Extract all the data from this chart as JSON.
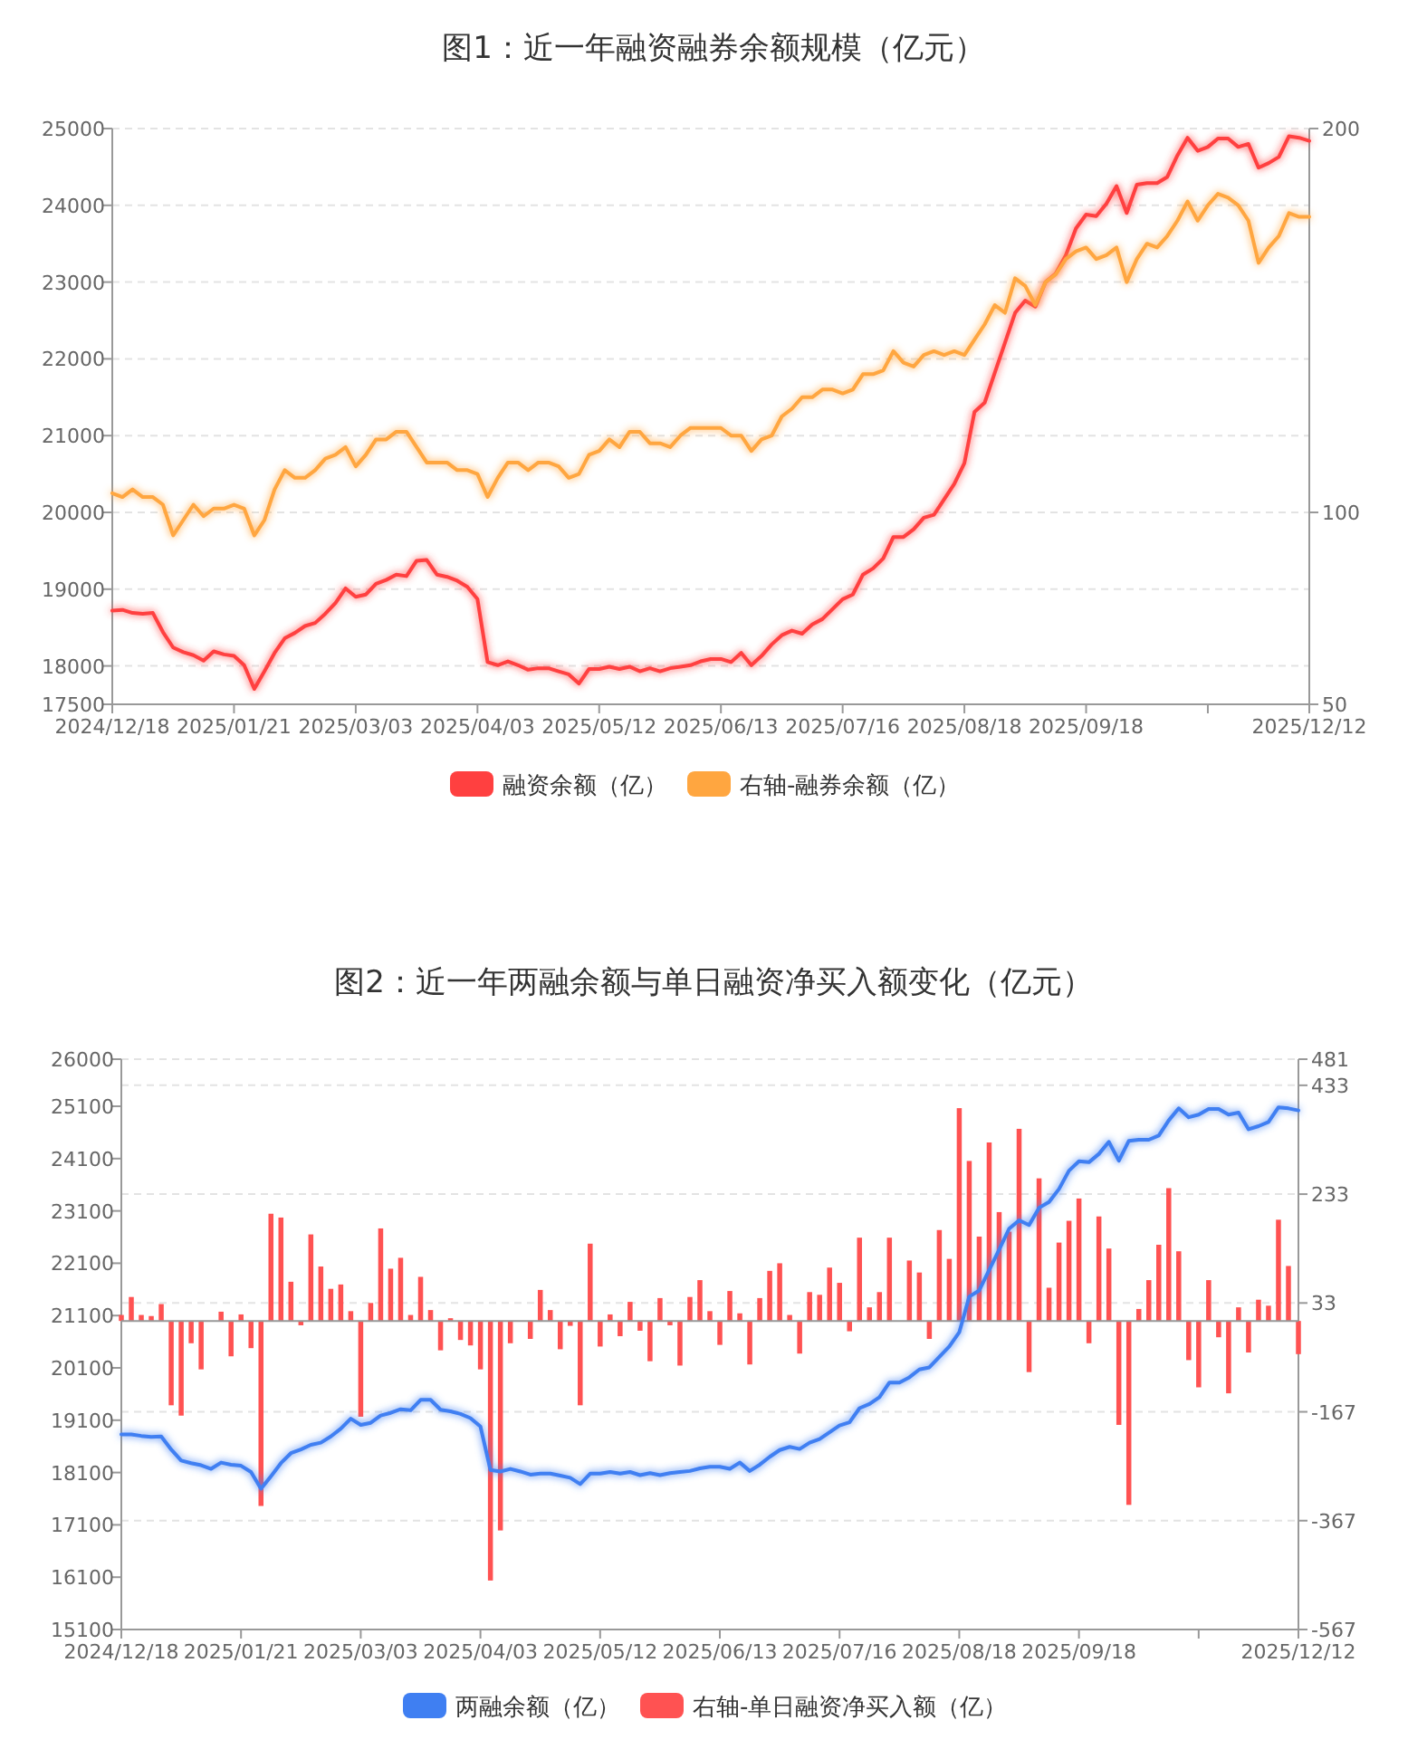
{
  "chart_data": [
    {
      "type": "line",
      "title": "图1：近一年融资融券余额规模（亿元）",
      "categories": [
        "2024/12/18",
        null,
        null,
        null,
        null,
        null,
        null,
        null,
        null,
        null,
        null,
        null,
        "2025/01/21",
        null,
        null,
        null,
        null,
        null,
        null,
        null,
        null,
        null,
        null,
        null,
        "2025/03/03",
        null,
        null,
        null,
        null,
        null,
        null,
        null,
        null,
        null,
        null,
        null,
        "2025/04/03",
        null,
        null,
        null,
        null,
        null,
        null,
        null,
        null,
        null,
        null,
        null,
        "2025/05/12",
        null,
        null,
        null,
        null,
        null,
        null,
        null,
        null,
        null,
        null,
        null,
        "2025/06/13",
        null,
        null,
        null,
        null,
        null,
        null,
        null,
        null,
        null,
        null,
        null,
        "2025/07/16",
        null,
        null,
        null,
        null,
        null,
        null,
        null,
        null,
        null,
        null,
        null,
        "2025/08/18",
        null,
        null,
        null,
        null,
        null,
        null,
        null,
        null,
        null,
        null,
        null,
        "2025/09/18",
        null,
        null,
        null,
        null,
        null,
        null,
        null,
        null,
        null,
        null,
        null,
        null,
        null,
        null,
        null,
        null,
        null,
        null,
        null,
        null,
        null,
        "2025/12/12"
      ],
      "series": [
        {
          "name": "融资余额（亿）",
          "color": "#ff4040",
          "values": [
            18720,
            18730,
            18690,
            18680,
            18690,
            18440,
            18240,
            18180,
            18140,
            18070,
            18190,
            18150,
            18130,
            18010,
            17700,
            17930,
            18170,
            18360,
            18430,
            18520,
            18560,
            18680,
            18820,
            19010,
            18900,
            18930,
            19070,
            19120,
            19190,
            19170,
            19370,
            19380,
            19190,
            19160,
            19110,
            19030,
            18870,
            18050,
            18010,
            18060,
            18010,
            17950,
            17970,
            17970,
            17930,
            17890,
            17770,
            17960,
            17960,
            17990,
            17960,
            17990,
            17930,
            17970,
            17930,
            17970,
            17990,
            18010,
            18060,
            18090,
            18090,
            18050,
            18170,
            18010,
            18130,
            18280,
            18400,
            18460,
            18420,
            18540,
            18610,
            18740,
            18870,
            18930,
            19190,
            19270,
            19400,
            19680,
            19680,
            19780,
            19930,
            19970,
            20170,
            20370,
            20640,
            21310,
            21430,
            21820,
            22210,
            22600,
            22760,
            22680,
            23000,
            23110,
            23350,
            23700,
            23880,
            23860,
            24020,
            24250,
            23900,
            24270,
            24290,
            24290,
            24370,
            24650,
            24880,
            24710,
            24760,
            24870,
            24870,
            24760,
            24800,
            24490,
            24550,
            24630,
            24900,
            24880,
            24840
          ]
        },
        {
          "name": "右轴-融券余额（亿）",
          "color": "#ffa640",
          "axis": "y2",
          "values": [
            105,
            104,
            106,
            104,
            104,
            102,
            94,
            98,
            102,
            99,
            101,
            101,
            102,
            101,
            94,
            98,
            106,
            111,
            109,
            109,
            111,
            114,
            115,
            117,
            112,
            115,
            119,
            119,
            121,
            121,
            117,
            113,
            113,
            113,
            111,
            111,
            110,
            104,
            109,
            113,
            113,
            111,
            113,
            113,
            112,
            109,
            110,
            115,
            116,
            119,
            117,
            121,
            121,
            118,
            118,
            117,
            120,
            122,
            122,
            122,
            122,
            120,
            120,
            116,
            119,
            120,
            125,
            127,
            130,
            130,
            132,
            132,
            131,
            132,
            136,
            136,
            137,
            142,
            139,
            138,
            141,
            142,
            141,
            142,
            141,
            145,
            149,
            154,
            152,
            161,
            159,
            154,
            160,
            162,
            166,
            168,
            169,
            166,
            167,
            169,
            160,
            166,
            170,
            169,
            172,
            176,
            181,
            176,
            180,
            183,
            182,
            180,
            176,
            165,
            169,
            172,
            178,
            177,
            177
          ]
        }
      ],
      "ylim": [
        17500,
        25000
      ],
      "yticks": [
        17500,
        18000,
        19000,
        20000,
        21000,
        22000,
        23000,
        24000,
        25000
      ],
      "y2lim": [
        50,
        200
      ],
      "y2ticks": [
        50,
        100,
        200
      ],
      "grid": "y",
      "legend": "bottom"
    },
    {
      "type": "line",
      "title": "图2：近一年两融余额与单日融资净买入额变化（亿元）",
      "categories": [
        "2024/12/18",
        null,
        null,
        null,
        null,
        null,
        null,
        null,
        null,
        null,
        null,
        null,
        "2025/01/21",
        null,
        null,
        null,
        null,
        null,
        null,
        null,
        null,
        null,
        null,
        null,
        "2025/03/03",
        null,
        null,
        null,
        null,
        null,
        null,
        null,
        null,
        null,
        null,
        null,
        "2025/04/03",
        null,
        null,
        null,
        null,
        null,
        null,
        null,
        null,
        null,
        null,
        null,
        "2025/05/12",
        null,
        null,
        null,
        null,
        null,
        null,
        null,
        null,
        null,
        null,
        null,
        "2025/06/13",
        null,
        null,
        null,
        null,
        null,
        null,
        null,
        null,
        null,
        null,
        null,
        "2025/07/16",
        null,
        null,
        null,
        null,
        null,
        null,
        null,
        null,
        null,
        null,
        null,
        "2025/08/18",
        null,
        null,
        null,
        null,
        null,
        null,
        null,
        null,
        null,
        null,
        null,
        "2025/09/18",
        null,
        null,
        null,
        null,
        null,
        null,
        null,
        null,
        null,
        null,
        null,
        null,
        null,
        null,
        null,
        null,
        null,
        null,
        null,
        null,
        null,
        "2025/12/12"
      ],
      "series": [
        {
          "name": "两融余额（亿）",
          "color": "#3f7ff2",
          "values": [
            18830,
            18830,
            18800,
            18780,
            18790,
            18540,
            18330,
            18280,
            18240,
            18170,
            18290,
            18250,
            18230,
            18110,
            17790,
            18030,
            18280,
            18470,
            18540,
            18630,
            18670,
            18790,
            18940,
            19130,
            19010,
            19050,
            19190,
            19240,
            19310,
            19290,
            19490,
            19490,
            19300,
            19270,
            19220,
            19140,
            18980,
            18150,
            18120,
            18170,
            18120,
            18060,
            18080,
            18080,
            18040,
            18000,
            17880,
            18080,
            18080,
            18110,
            18080,
            18110,
            18050,
            18090,
            18050,
            18090,
            18110,
            18130,
            18180,
            18210,
            18210,
            18170,
            18290,
            18130,
            18250,
            18400,
            18530,
            18590,
            18550,
            18670,
            18740,
            18870,
            19000,
            19060,
            19330,
            19410,
            19540,
            19820,
            19820,
            19920,
            20070,
            20110,
            20310,
            20510,
            20780,
            21460,
            21580,
            21970,
            22360,
            22760,
            22920,
            22830,
            23160,
            23270,
            23520,
            23870,
            24050,
            24030,
            24190,
            24420,
            24060,
            24440,
            24460,
            24460,
            24540,
            24830,
            25060,
            24890,
            24940,
            25050,
            25050,
            24940,
            24980,
            24660,
            24720,
            24800,
            25080,
            25060,
            25020
          ]
        },
        {
          "name": "右轴-单日融资净买入额（亿）",
          "type": "bar",
          "axis": "y2",
          "color": "#ff5252",
          "values": [
            11,
            44,
            11,
            9,
            31,
            -155,
            -174,
            -41,
            -89,
            null,
            17,
            -65,
            12,
            -50,
            -340,
            197,
            190,
            72,
            -8,
            159,
            100,
            59,
            67,
            18,
            -176,
            33,
            170,
            96,
            116,
            11,
            81,
            20,
            -54,
            5,
            -35,
            -45,
            -89,
            -477,
            -385,
            -41,
            null,
            -33,
            57,
            20,
            -52,
            -9,
            -155,
            142,
            -47,
            12,
            -28,
            35,
            -18,
            -74,
            42,
            -8,
            -82,
            44,
            75,
            18,
            -44,
            55,
            14,
            -80,
            42,
            92,
            106,
            11,
            -60,
            53,
            48,
            98,
            70,
            -19,
            153,
            25,
            53,
            153,
            null,
            111,
            89,
            -33,
            167,
            114,
            391,
            294,
            155,
            328,
            200,
            164,
            353,
            -94,
            262,
            61,
            144,
            184,
            225,
            -41,
            192,
            133,
            -191,
            -338,
            22,
            75,
            140,
            244,
            128,
            -72,
            -122,
            75,
            -30,
            -133,
            25,
            -58,
            39,
            28,
            186,
            101,
            -61
          ]
        }
      ],
      "ylim": [
        15100,
        26000
      ],
      "yticks": [
        15100,
        16100,
        17100,
        18100,
        19100,
        20100,
        21100,
        22100,
        23100,
        24100,
        25100,
        26000
      ],
      "y2lim": [
        -567,
        481
      ],
      "y2ticks": [
        -567,
        -367,
        -167,
        33,
        233,
        433,
        481
      ],
      "grid": "y2",
      "legend": "bottom"
    }
  ]
}
